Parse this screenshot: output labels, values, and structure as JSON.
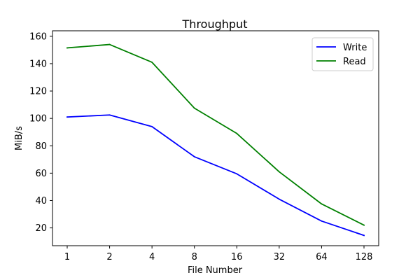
{
  "chart_data": {
    "type": "line",
    "title": "Throughput",
    "xlabel": "File Number",
    "ylabel": "MiB/s",
    "categories": [
      "1",
      "2",
      "4",
      "8",
      "16",
      "32",
      "64",
      "128"
    ],
    "series": [
      {
        "name": "Write",
        "color": "#0000ff",
        "values": [
          101,
          102.5,
          94,
          72,
          59.5,
          41,
          25,
          14.5
        ]
      },
      {
        "name": "Read",
        "color": "#008000",
        "values": [
          151.5,
          154,
          141,
          107.5,
          89,
          61,
          37.5,
          22
        ]
      }
    ],
    "ylim": [
      7,
      164
    ],
    "yticks": [
      20,
      40,
      60,
      80,
      100,
      120,
      140,
      160
    ],
    "grid": false,
    "legend_position": "top-right"
  }
}
